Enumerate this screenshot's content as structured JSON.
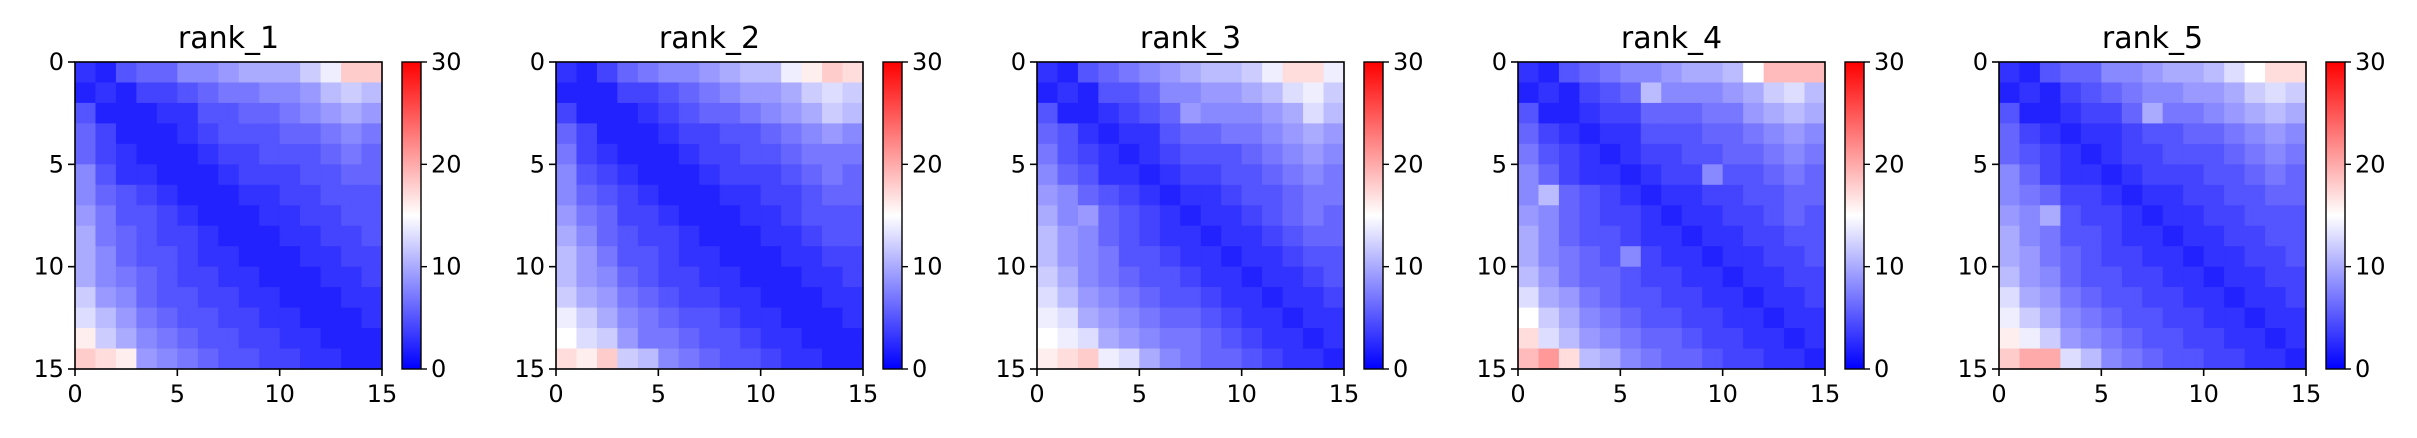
{
  "chart_data": [
    {
      "type": "heatmap",
      "title": "rank_1",
      "xlabel": "",
      "ylabel": "",
      "xlim": [
        0,
        15
      ],
      "ylim": [
        15,
        0
      ],
      "x_ticks": [
        "0",
        "5",
        "10",
        "15"
      ],
      "y_ticks": [
        "0",
        "5",
        "10",
        "15"
      ],
      "colorbar": {
        "range": [
          0,
          30
        ],
        "ticks": [
          "0",
          "10",
          "20",
          "30"
        ],
        "colormap": "bwr"
      },
      "grid": false,
      "values": [
        [
          3,
          2,
          5,
          6,
          6,
          8,
          8,
          9,
          10,
          10,
          10,
          12,
          14,
          18,
          18
        ],
        [
          2,
          3,
          2,
          4,
          4,
          5,
          6,
          7,
          7,
          8,
          8,
          9,
          11,
          12,
          11
        ],
        [
          5,
          2,
          2,
          2,
          3,
          3,
          5,
          5,
          6,
          6,
          7,
          8,
          9,
          10,
          9
        ],
        [
          6,
          4,
          2,
          2,
          2,
          3,
          4,
          5,
          5,
          5,
          6,
          6,
          7,
          8,
          7
        ],
        [
          6,
          4,
          3,
          2,
          2,
          2,
          3,
          4,
          4,
          5,
          5,
          5,
          6,
          7,
          6
        ],
        [
          8,
          5,
          3,
          3,
          2,
          2,
          2,
          3,
          4,
          4,
          4,
          5,
          5,
          6,
          6
        ],
        [
          8,
          6,
          5,
          4,
          3,
          2,
          2,
          2,
          3,
          3,
          4,
          4,
          5,
          5,
          5
        ],
        [
          9,
          7,
          5,
          5,
          4,
          3,
          2,
          2,
          2,
          3,
          3,
          4,
          4,
          5,
          5
        ],
        [
          10,
          7,
          6,
          5,
          4,
          4,
          3,
          2,
          2,
          2,
          3,
          3,
          4,
          4,
          5
        ],
        [
          10,
          8,
          6,
          5,
          5,
          4,
          3,
          3,
          2,
          2,
          2,
          3,
          3,
          4,
          4
        ],
        [
          10,
          8,
          7,
          6,
          5,
          4,
          4,
          3,
          3,
          2,
          2,
          2,
          3,
          3,
          4
        ],
        [
          12,
          9,
          8,
          6,
          5,
          5,
          4,
          4,
          3,
          3,
          2,
          2,
          2,
          3,
          3
        ],
        [
          13,
          11,
          9,
          7,
          6,
          5,
          5,
          4,
          4,
          3,
          3,
          2,
          2,
          2,
          3
        ],
        [
          16,
          12,
          10,
          8,
          7,
          6,
          5,
          5,
          4,
          4,
          3,
          3,
          2,
          2,
          2
        ],
        [
          18,
          17,
          16,
          9,
          8,
          7,
          6,
          5,
          5,
          4,
          4,
          3,
          3,
          2,
          2
        ]
      ]
    },
    {
      "type": "heatmap",
      "title": "rank_2",
      "xlabel": "",
      "ylabel": "",
      "xlim": [
        0,
        15
      ],
      "ylim": [
        15,
        0
      ],
      "x_ticks": [
        "0",
        "5",
        "10",
        "15"
      ],
      "y_ticks": [
        "0",
        "5",
        "10",
        "15"
      ],
      "colorbar": {
        "range": [
          0,
          30
        ],
        "ticks": [
          "0",
          "10",
          "20",
          "30"
        ],
        "colormap": "bwr"
      },
      "grid": false,
      "values": [
        [
          3,
          2,
          4,
          6,
          7,
          8,
          8,
          9,
          10,
          11,
          11,
          14,
          16,
          18,
          17
        ],
        [
          2,
          2,
          2,
          4,
          4,
          5,
          6,
          7,
          8,
          9,
          9,
          10,
          12,
          13,
          12
        ],
        [
          4,
          2,
          2,
          2,
          3,
          4,
          5,
          6,
          6,
          7,
          8,
          9,
          10,
          12,
          11
        ],
        [
          6,
          4,
          2,
          2,
          2,
          3,
          4,
          4,
          5,
          5,
          6,
          7,
          8,
          9,
          8
        ],
        [
          7,
          4,
          3,
          2,
          2,
          2,
          3,
          4,
          4,
          5,
          5,
          6,
          7,
          7,
          7
        ],
        [
          8,
          5,
          4,
          3,
          2,
          2,
          2,
          3,
          4,
          4,
          4,
          5,
          6,
          7,
          6
        ],
        [
          8,
          6,
          5,
          4,
          3,
          2,
          2,
          2,
          3,
          3,
          4,
          4,
          5,
          6,
          6
        ],
        [
          9,
          7,
          6,
          4,
          4,
          3,
          2,
          2,
          2,
          3,
          3,
          4,
          5,
          5,
          5
        ],
        [
          10,
          8,
          6,
          5,
          4,
          4,
          3,
          2,
          2,
          2,
          3,
          3,
          4,
          5,
          5
        ],
        [
          11,
          9,
          7,
          5,
          5,
          4,
          3,
          3,
          2,
          2,
          2,
          3,
          3,
          4,
          4
        ],
        [
          11,
          9,
          8,
          6,
          5,
          4,
          4,
          3,
          3,
          2,
          2,
          2,
          3,
          3,
          4
        ],
        [
          12,
          10,
          9,
          7,
          6,
          5,
          4,
          4,
          3,
          3,
          2,
          2,
          2,
          3,
          3
        ],
        [
          14,
          12,
          10,
          8,
          7,
          6,
          5,
          5,
          4,
          3,
          3,
          2,
          2,
          2,
          3
        ],
        [
          15,
          13,
          12,
          9,
          7,
          7,
          6,
          5,
          5,
          4,
          3,
          3,
          2,
          2,
          2
        ],
        [
          17,
          16,
          18,
          12,
          11,
          8,
          7,
          6,
          5,
          5,
          4,
          3,
          3,
          2,
          2
        ]
      ]
    },
    {
      "type": "heatmap",
      "title": "rank_3",
      "xlabel": "",
      "ylabel": "",
      "xlim": [
        0,
        15
      ],
      "ylim": [
        15,
        0
      ],
      "x_ticks": [
        "0",
        "5",
        "10",
        "15"
      ],
      "y_ticks": [
        "0",
        "5",
        "10",
        "15"
      ],
      "colorbar": {
        "range": [
          0,
          30
        ],
        "ticks": [
          "0",
          "10",
          "20",
          "30"
        ],
        "colormap": "bwr"
      },
      "grid": false,
      "values": [
        [
          3,
          2,
          5,
          6,
          7,
          8,
          9,
          10,
          11,
          11,
          12,
          14,
          17,
          17,
          14
        ],
        [
          2,
          3,
          2,
          5,
          5,
          6,
          8,
          8,
          9,
          9,
          10,
          11,
          13,
          14,
          12
        ],
        [
          5,
          2,
          2,
          3,
          4,
          5,
          6,
          9,
          8,
          8,
          8,
          9,
          10,
          13,
          11
        ],
        [
          6,
          5,
          3,
          2,
          3,
          3,
          5,
          6,
          6,
          7,
          7,
          8,
          9,
          10,
          9
        ],
        [
          7,
          5,
          4,
          3,
          2,
          3,
          4,
          5,
          5,
          5,
          6,
          7,
          8,
          9,
          8
        ],
        [
          8,
          6,
          5,
          3,
          3,
          2,
          3,
          4,
          4,
          5,
          5,
          6,
          7,
          8,
          7
        ],
        [
          9,
          8,
          6,
          5,
          4,
          3,
          2,
          3,
          3,
          4,
          5,
          5,
          6,
          7,
          7
        ],
        [
          10,
          8,
          9,
          6,
          5,
          4,
          3,
          2,
          3,
          3,
          4,
          5,
          6,
          7,
          6
        ],
        [
          11,
          9,
          8,
          6,
          5,
          4,
          3,
          3,
          2,
          3,
          3,
          4,
          5,
          6,
          6
        ],
        [
          11,
          9,
          8,
          7,
          5,
          5,
          4,
          3,
          3,
          2,
          3,
          3,
          4,
          5,
          5
        ],
        [
          12,
          10,
          8,
          7,
          6,
          5,
          5,
          4,
          3,
          3,
          2,
          3,
          3,
          4,
          5
        ],
        [
          13,
          11,
          9,
          8,
          7,
          6,
          5,
          5,
          4,
          3,
          3,
          2,
          3,
          3,
          4
        ],
        [
          14,
          13,
          10,
          9,
          8,
          7,
          6,
          6,
          5,
          4,
          3,
          3,
          2,
          3,
          3
        ],
        [
          15,
          14,
          13,
          10,
          9,
          8,
          7,
          7,
          6,
          5,
          4,
          3,
          3,
          2,
          3
        ],
        [
          16,
          17,
          18,
          14,
          13,
          10,
          8,
          7,
          6,
          6,
          5,
          4,
          3,
          3,
          2
        ]
      ]
    },
    {
      "type": "heatmap",
      "title": "rank_4",
      "xlabel": "",
      "ylabel": "",
      "xlim": [
        0,
        15
      ],
      "ylim": [
        15,
        0
      ],
      "x_ticks": [
        "0",
        "5",
        "10",
        "15"
      ],
      "y_ticks": [
        "0",
        "5",
        "10",
        "15"
      ],
      "colorbar": {
        "range": [
          0,
          30
        ],
        "ticks": [
          "0",
          "10",
          "20",
          "30"
        ],
        "colormap": "bwr"
      },
      "grid": false,
      "values": [
        [
          3,
          2,
          5,
          6,
          7,
          8,
          8,
          9,
          10,
          10,
          11,
          15,
          19,
          19,
          19
        ],
        [
          2,
          3,
          2,
          4,
          5,
          6,
          11,
          8,
          8,
          8,
          9,
          10,
          12,
          13,
          11
        ],
        [
          5,
          2,
          2,
          3,
          4,
          4,
          6,
          6,
          6,
          7,
          7,
          9,
          10,
          11,
          10
        ],
        [
          6,
          4,
          3,
          2,
          3,
          3,
          5,
          5,
          5,
          6,
          6,
          7,
          8,
          9,
          8
        ],
        [
          7,
          5,
          4,
          3,
          2,
          3,
          4,
          4,
          5,
          5,
          6,
          6,
          7,
          8,
          7
        ],
        [
          8,
          6,
          4,
          3,
          3,
          2,
          3,
          4,
          4,
          8,
          5,
          5,
          6,
          7,
          6
        ],
        [
          8,
          11,
          6,
          5,
          4,
          3,
          2,
          3,
          3,
          4,
          4,
          5,
          5,
          6,
          6
        ],
        [
          9,
          8,
          6,
          5,
          4,
          4,
          3,
          2,
          3,
          3,
          4,
          4,
          5,
          6,
          5
        ],
        [
          10,
          8,
          6,
          5,
          5,
          4,
          3,
          3,
          2,
          3,
          3,
          4,
          4,
          5,
          5
        ],
        [
          10,
          8,
          7,
          6,
          5,
          8,
          4,
          3,
          3,
          2,
          3,
          3,
          4,
          4,
          5
        ],
        [
          11,
          9,
          7,
          6,
          6,
          5,
          4,
          4,
          3,
          3,
          2,
          3,
          3,
          4,
          4
        ],
        [
          13,
          10,
          9,
          7,
          6,
          5,
          5,
          4,
          4,
          3,
          3,
          2,
          3,
          3,
          4
        ],
        [
          15,
          12,
          10,
          8,
          7,
          6,
          5,
          5,
          4,
          4,
          3,
          3,
          2,
          3,
          3
        ],
        [
          17,
          13,
          11,
          9,
          8,
          7,
          6,
          6,
          5,
          4,
          4,
          3,
          3,
          2,
          3
        ],
        [
          19,
          21,
          17,
          11,
          10,
          8,
          7,
          6,
          6,
          5,
          4,
          4,
          3,
          3,
          2
        ]
      ]
    },
    {
      "type": "heatmap",
      "title": "rank_5",
      "xlabel": "",
      "ylabel": "",
      "xlim": [
        0,
        15
      ],
      "ylim": [
        15,
        0
      ],
      "x_ticks": [
        "0",
        "5",
        "10",
        "15"
      ],
      "y_ticks": [
        "0",
        "5",
        "10",
        "15"
      ],
      "colorbar": {
        "range": [
          0,
          30
        ],
        "ticks": [
          "0",
          "10",
          "20",
          "30"
        ],
        "colormap": "bwr"
      },
      "grid": false,
      "values": [
        [
          3,
          2,
          5,
          6,
          6,
          8,
          8,
          9,
          10,
          10,
          11,
          13,
          15,
          17,
          17
        ],
        [
          2,
          3,
          2,
          4,
          5,
          6,
          7,
          8,
          8,
          9,
          9,
          10,
          12,
          13,
          12
        ],
        [
          5,
          2,
          2,
          3,
          4,
          4,
          6,
          10,
          7,
          7,
          8,
          9,
          10,
          11,
          10
        ],
        [
          6,
          4,
          3,
          2,
          3,
          3,
          4,
          5,
          5,
          6,
          6,
          7,
          8,
          9,
          8
        ],
        [
          6,
          5,
          4,
          3,
          2,
          3,
          4,
          4,
          5,
          5,
          5,
          6,
          7,
          8,
          7
        ],
        [
          8,
          6,
          4,
          3,
          3,
          2,
          3,
          4,
          4,
          4,
          5,
          5,
          6,
          7,
          6
        ],
        [
          8,
          7,
          6,
          4,
          4,
          3,
          2,
          3,
          3,
          4,
          4,
          5,
          5,
          6,
          6
        ],
        [
          9,
          8,
          10,
          5,
          4,
          4,
          3,
          2,
          3,
          3,
          4,
          4,
          5,
          5,
          5
        ],
        [
          10,
          8,
          7,
          5,
          5,
          4,
          3,
          3,
          2,
          3,
          3,
          4,
          4,
          5,
          5
        ],
        [
          10,
          9,
          7,
          6,
          5,
          4,
          4,
          3,
          3,
          2,
          3,
          3,
          4,
          4,
          5
        ],
        [
          11,
          9,
          8,
          6,
          5,
          5,
          4,
          4,
          3,
          3,
          2,
          3,
          3,
          4,
          4
        ],
        [
          13,
          10,
          9,
          7,
          6,
          5,
          5,
          4,
          4,
          3,
          3,
          2,
          3,
          3,
          4
        ],
        [
          14,
          12,
          10,
          8,
          7,
          6,
          5,
          5,
          4,
          4,
          3,
          3,
          2,
          3,
          3
        ],
        [
          16,
          14,
          12,
          9,
          8,
          7,
          6,
          5,
          5,
          4,
          4,
          3,
          3,
          2,
          3
        ],
        [
          18,
          20,
          20,
          13,
          11,
          8,
          7,
          6,
          5,
          5,
          4,
          4,
          3,
          3,
          2
        ]
      ]
    }
  ]
}
